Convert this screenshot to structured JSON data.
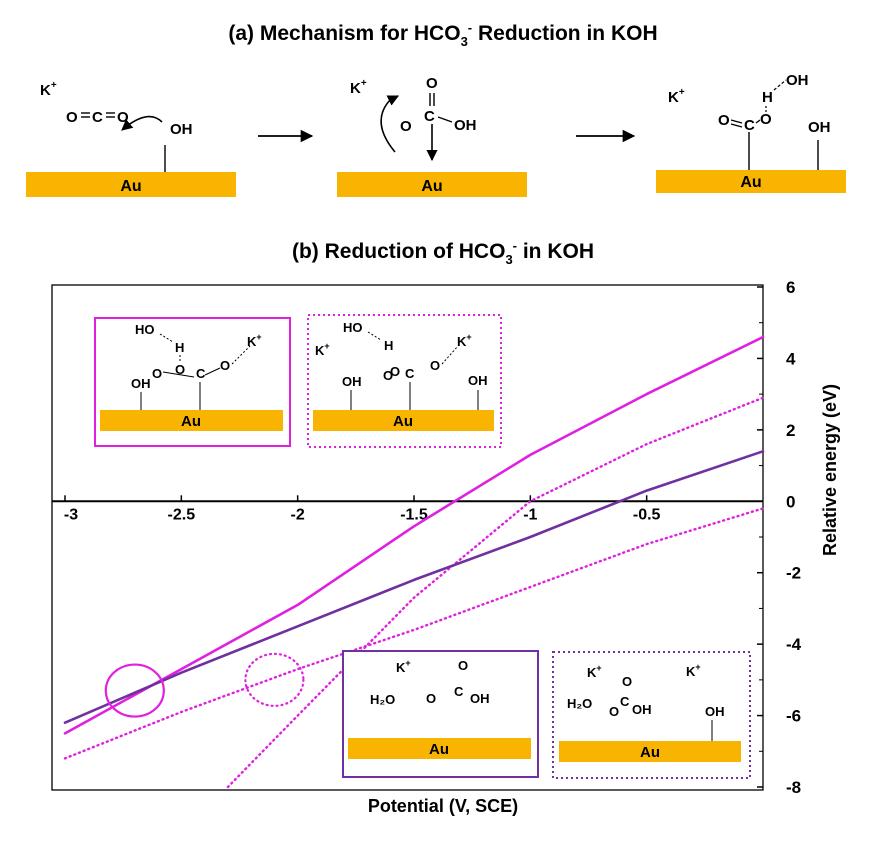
{
  "part_a": {
    "title_prefix": "(a) Mechanism for HCO",
    "title_sub": "3",
    "title_sup": "-",
    "title_suffix": " Reduction in KOH",
    "surface_label": "Au",
    "cation": "K",
    "cation_charge": "+",
    "step1": {
      "o_left": "O",
      "c": "C",
      "o_right": "O",
      "hydroxyl": "OH"
    },
    "step2": {
      "o_top": "O",
      "c": "C",
      "o_left": "O",
      "hydroxyl": "OH"
    },
    "step3": {
      "o_top": "O",
      "c": "C",
      "o_left": "O",
      "h": "H",
      "water_oh": "OH",
      "hydroxyl": "OH"
    }
  },
  "part_b": {
    "title_prefix": "(b) Reduction of HCO",
    "title_sub": "3",
    "title_sup": "-",
    "title_suffix": " in KOH",
    "insets": {
      "ho": "HO",
      "h": "H",
      "o": "O",
      "c": "C",
      "oh": "OH",
      "k": "K",
      "plus": "+",
      "h2o": "H₂O",
      "au": "Au"
    }
  },
  "colors": {
    "magenta": "#e020e0",
    "purple": "#7030a0",
    "gold": "#f8b400",
    "axis": "#000000"
  },
  "chart_data": {
    "type": "line",
    "title": "(b) Reduction of HCO3- in KOH",
    "xlabel": "Potential (V, SCE)",
    "ylabel": "Relative energy (eV)",
    "xlim": [
      -3.0,
      0.0
    ],
    "ylim": [
      -8,
      6
    ],
    "x_ticks": [
      -3,
      -2.5,
      -2,
      -1.5,
      -1,
      -0.5
    ],
    "x_tick_labels": [
      "-3",
      "-2.5",
      "-2",
      "-1.5",
      "-1",
      "-0.5"
    ],
    "y_ticks": [
      6,
      4,
      2,
      0,
      -2,
      -4,
      -6,
      -8
    ],
    "y_tick_labels": [
      "6",
      "4",
      "2",
      "0",
      "-2",
      "-4",
      "-6",
      "-8"
    ],
    "grid": false,
    "series": [
      {
        "color": "#e020e0",
        "style": "solid",
        "x": [
          -3.0,
          -2.5,
          -2.0,
          -1.5,
          -1.0,
          -0.5,
          0.0
        ],
        "y": [
          -6.5,
          -4.7,
          -2.9,
          -0.7,
          1.3,
          3.0,
          4.6
        ]
      },
      {
        "color": "#e020e0",
        "style": "dotted",
        "x": [
          -2.3,
          -2.0,
          -1.5,
          -1.0,
          -0.5,
          0.0
        ],
        "y": [
          -8.0,
          -6.0,
          -2.7,
          0.0,
          1.6,
          2.9
        ]
      },
      {
        "color": "#7030a0",
        "style": "solid",
        "x": [
          -3.0,
          -2.5,
          -2.0,
          -1.5,
          -1.0,
          -0.5,
          0.0
        ],
        "y": [
          -6.2,
          -4.8,
          -3.5,
          -2.2,
          -1.0,
          0.3,
          1.4
        ]
      },
      {
        "color": "#e020e0",
        "style": "dotted",
        "x": [
          -3.0,
          -2.5,
          -2.0,
          -1.5,
          -1.0,
          -0.5,
          0.0
        ],
        "y": [
          -7.2,
          -5.9,
          -4.7,
          -3.6,
          -2.4,
          -1.2,
          -0.2
        ]
      }
    ],
    "crossing_markers": [
      {
        "x": -2.7,
        "y": -5.3,
        "style": "solid",
        "color": "#e020e0"
      },
      {
        "x": -2.1,
        "y": -5.0,
        "style": "dotted",
        "color": "#e020e0"
      }
    ]
  }
}
